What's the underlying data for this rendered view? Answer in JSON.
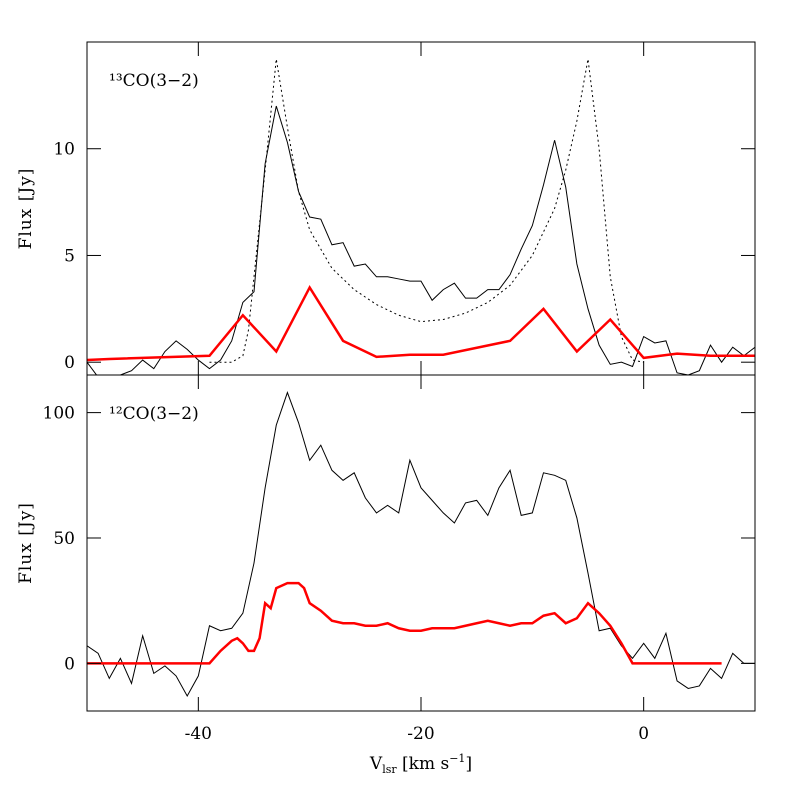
{
  "chart_data": [
    {
      "type": "line",
      "annotation": "¹³CO(3−2)",
      "ylabel": "Flux [Jy]",
      "xlim": [
        -50,
        10
      ],
      "ylim": [
        -0.6,
        15
      ],
      "yticks": [
        0,
        5,
        10
      ],
      "xticks": [
        -40,
        -20,
        0
      ],
      "series": [
        {
          "color": "#000000",
          "style": "solid",
          "width": 1,
          "x": [
            -50,
            -49,
            -48,
            -47,
            -46,
            -45,
            -44,
            -43,
            -42,
            -41,
            -40,
            -39,
            -38,
            -37,
            -36,
            -35,
            -34,
            -33,
            -32,
            -31,
            -30,
            -29,
            -28,
            -27,
            -26,
            -25,
            -24,
            -23,
            -22,
            -21,
            -20,
            -19,
            -18,
            -17,
            -16,
            -15,
            -14,
            -13,
            -12,
            -11,
            -10,
            -9,
            -8,
            -7,
            -6,
            -5,
            -4,
            -3,
            -2,
            -1,
            0,
            1,
            2,
            3,
            4,
            5,
            6,
            7,
            8,
            9,
            10
          ],
          "values": [
            0.0,
            -0.7,
            -0.8,
            -0.6,
            -0.4,
            0.1,
            -0.3,
            0.5,
            1.0,
            0.6,
            0.1,
            -0.3,
            0.1,
            1.0,
            2.8,
            3.3,
            9.3,
            12.0,
            10.3,
            8.0,
            6.8,
            6.7,
            5.5,
            5.6,
            4.5,
            4.6,
            4.0,
            4.0,
            3.9,
            3.8,
            3.8,
            2.9,
            3.4,
            3.7,
            3.0,
            3.0,
            3.4,
            3.4,
            4.1,
            5.3,
            6.4,
            8.3,
            10.4,
            8.2,
            4.6,
            2.5,
            0.8,
            -0.1,
            0.0,
            -0.2,
            1.2,
            0.9,
            1.0,
            -0.5,
            -0.6,
            -0.4,
            0.8,
            0.0,
            0.7,
            0.3,
            0.7
          ]
        },
        {
          "color": "#000000",
          "style": "dotted",
          "width": 1,
          "x": [
            -39,
            -37,
            -36,
            -35.5,
            -34,
            -33,
            -32,
            -31,
            -30,
            -28,
            -26,
            -24,
            -22,
            -20,
            -18,
            -16,
            -14,
            -12,
            -10,
            -8,
            -7,
            -6,
            -5,
            -4,
            -3,
            -2,
            -1,
            0
          ],
          "values": [
            0,
            0,
            0.3,
            1.5,
            9,
            14.2,
            11,
            8,
            6.2,
            4.4,
            3.4,
            2.7,
            2.2,
            1.9,
            2.0,
            2.3,
            2.8,
            3.6,
            5,
            7.2,
            9,
            11.3,
            14.2,
            10,
            4,
            1.2,
            0.1,
            0
          ]
        },
        {
          "color": "#ff0000",
          "style": "solid",
          "width": 2.5,
          "x": [
            -50,
            -48,
            -39,
            -36,
            -33,
            -30,
            -27,
            -24,
            -21,
            -18,
            -12,
            -9,
            -6,
            -3,
            0,
            3,
            6,
            10
          ],
          "values": [
            0.1,
            0.15,
            0.3,
            2.2,
            0.5,
            3.5,
            1.0,
            0.25,
            0.35,
            0.35,
            1.0,
            2.5,
            0.5,
            2.0,
            0.2,
            0.4,
            0.3,
            0.3
          ]
        }
      ]
    },
    {
      "type": "line",
      "annotation": "¹²CO(3−2)",
      "ylabel": "Flux [Jy]",
      "xlabel": [
        "V",
        "lsr",
        " [km s",
        "−1",
        "]"
      ],
      "xlim": [
        -50,
        10
      ],
      "ylim": [
        -19,
        115
      ],
      "yticks": [
        0,
        50,
        100
      ],
      "xticks": [
        -40,
        -20,
        0
      ],
      "series": [
        {
          "color": "#000000",
          "style": "solid",
          "width": 1,
          "x": [
            -50,
            -49,
            -48,
            -47,
            -46,
            -45,
            -44,
            -43,
            -42,
            -41,
            -40,
            -39,
            -38,
            -37,
            -36,
            -35,
            -34,
            -33,
            -32,
            -31,
            -30,
            -29,
            -28,
            -27,
            -26,
            -25,
            -24,
            -23,
            -22,
            -21,
            -20,
            -19,
            -18,
            -17,
            -16,
            -15,
            -14,
            -13,
            -12,
            -11,
            -10,
            -9,
            -8,
            -7,
            -6,
            -5,
            -4,
            -3,
            -2,
            -1,
            0,
            1,
            2,
            3,
            4,
            5,
            6,
            7,
            8,
            9,
            10
          ],
          "values": [
            7,
            4,
            -6,
            2,
            -8,
            11,
            -4,
            -1,
            -5,
            -13,
            -5,
            15,
            13,
            14,
            20,
            40,
            70,
            95,
            108,
            96,
            81,
            87,
            77,
            73,
            76,
            66,
            60,
            63,
            60,
            81,
            70,
            65,
            60,
            56,
            64,
            65,
            59,
            70,
            77,
            59,
            60,
            76,
            75,
            73,
            58,
            36,
            13,
            14,
            7,
            2,
            8,
            2,
            12,
            -7,
            -10,
            -9,
            -2,
            -6,
            4,
            0,
            0
          ]
        },
        {
          "color": "#ff0000",
          "style": "solid",
          "width": 2.5,
          "x": [
            -50,
            -39,
            -38,
            -37,
            -36.5,
            -36,
            -35.5,
            -35,
            -34.5,
            -34,
            -33.5,
            -33,
            -32,
            -31,
            -30.5,
            -30,
            -29,
            -28,
            -27,
            -26,
            -25,
            -24,
            -23,
            -22,
            -21,
            -20,
            -19,
            -18,
            -17,
            -16,
            -15,
            -14,
            -13,
            -12,
            -11,
            -10,
            -9,
            -8,
            -7,
            -6,
            -5,
            -4,
            -3,
            -2,
            -1,
            0,
            7
          ],
          "values": [
            0,
            0,
            5,
            9,
            10,
            8,
            5,
            5,
            10,
            24,
            22,
            30,
            32,
            32,
            30,
            24,
            21,
            17,
            16,
            16,
            15,
            15,
            16,
            14,
            13,
            13,
            14,
            14,
            14,
            15,
            16,
            17,
            16,
            15,
            16,
            16,
            19,
            20,
            16,
            18,
            24,
            20,
            15,
            8,
            0,
            0,
            0
          ]
        }
      ]
    }
  ]
}
